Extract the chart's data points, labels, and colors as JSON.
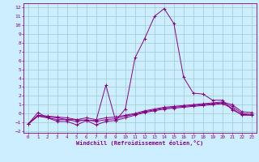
{
  "xlabel": "Windchill (Refroidissement éolien,°C)",
  "bg_color": "#cceeff",
  "grid_color": "#99cccc",
  "line_color": "#880088",
  "xlim": [
    -0.5,
    23.5
  ],
  "ylim": [
    -2.2,
    12.5
  ],
  "xticks": [
    0,
    1,
    2,
    3,
    4,
    5,
    6,
    7,
    8,
    9,
    10,
    11,
    12,
    13,
    14,
    15,
    16,
    17,
    18,
    19,
    20,
    21,
    22,
    23
  ],
  "yticks": [
    -2,
    -1,
    0,
    1,
    2,
    3,
    4,
    5,
    6,
    7,
    8,
    9,
    10,
    11,
    12
  ],
  "series": [
    {
      "x": [
        0,
        1,
        2,
        3,
        4,
        5,
        6,
        7,
        8,
        9,
        10,
        11,
        12,
        13,
        14,
        15,
        16,
        17,
        18,
        19,
        20,
        21,
        22,
        23
      ],
      "y": [
        -1.2,
        0.1,
        -0.5,
        -0.7,
        -0.7,
        -0.7,
        -0.8,
        -0.8,
        3.2,
        -0.8,
        0.5,
        6.3,
        8.5,
        11.0,
        11.9,
        10.2,
        4.1,
        2.3,
        2.2,
        1.5,
        1.5,
        0.4,
        -0.1,
        -0.2
      ]
    },
    {
      "x": [
        0,
        1,
        2,
        3,
        4,
        5,
        6,
        7,
        8,
        9,
        10,
        11,
        12,
        13,
        14,
        15,
        16,
        17,
        18,
        19,
        20,
        21,
        22,
        23
      ],
      "y": [
        -1.2,
        -0.3,
        -0.5,
        -0.9,
        -0.9,
        -1.3,
        -0.8,
        -1.3,
        -0.9,
        -0.8,
        -0.5,
        -0.2,
        0.1,
        0.3,
        0.5,
        0.6,
        0.7,
        0.8,
        0.9,
        1.0,
        1.1,
        0.6,
        -0.2,
        -0.2
      ]
    },
    {
      "x": [
        0,
        1,
        2,
        3,
        4,
        5,
        6,
        7,
        8,
        9,
        10,
        11,
        12,
        13,
        14,
        15,
        16,
        17,
        18,
        19,
        20,
        21,
        22,
        23
      ],
      "y": [
        -1.2,
        -0.3,
        -0.4,
        -0.5,
        -0.7,
        -0.9,
        -0.7,
        -0.9,
        -0.7,
        -0.6,
        -0.3,
        -0.1,
        0.2,
        0.4,
        0.6,
        0.7,
        0.8,
        0.9,
        1.0,
        1.1,
        1.2,
        0.8,
        0.0,
        -0.1
      ]
    },
    {
      "x": [
        0,
        1,
        2,
        3,
        4,
        5,
        6,
        7,
        8,
        9,
        10,
        11,
        12,
        13,
        14,
        15,
        16,
        17,
        18,
        19,
        20,
        21,
        22,
        23
      ],
      "y": [
        -1.2,
        -0.2,
        -0.3,
        -0.4,
        -0.5,
        -0.7,
        -0.5,
        -0.7,
        -0.5,
        -0.4,
        -0.2,
        0.0,
        0.3,
        0.5,
        0.7,
        0.8,
        0.9,
        1.0,
        1.1,
        1.2,
        1.3,
        1.0,
        0.2,
        0.1
      ]
    }
  ]
}
